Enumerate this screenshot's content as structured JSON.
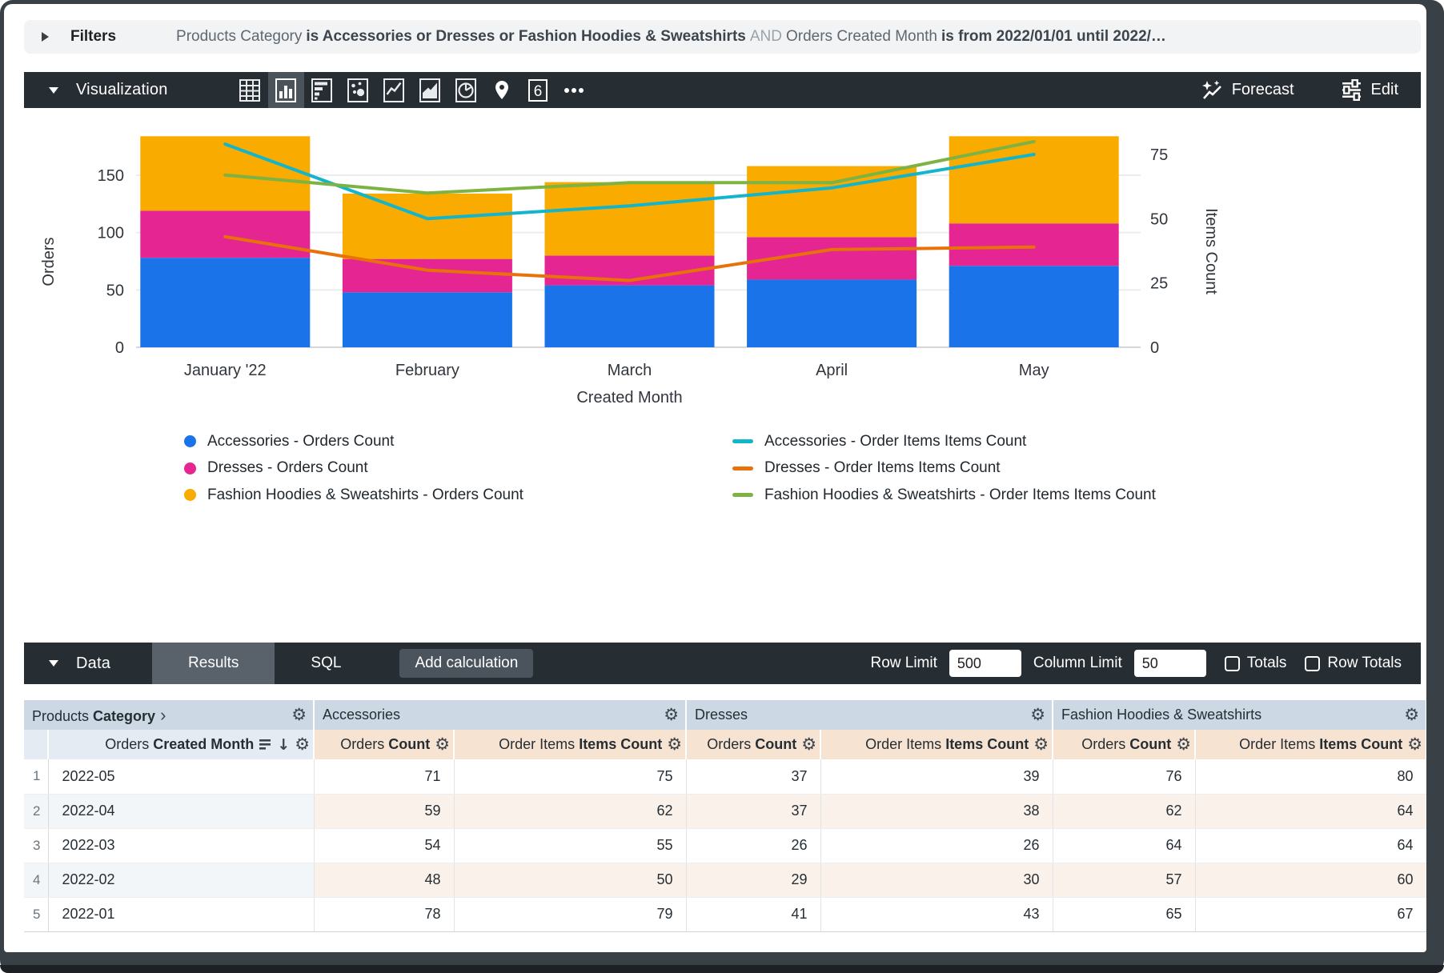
{
  "filters_bar": {
    "label": "Filters",
    "summary_segments": [
      {
        "text": "Products Category",
        "style": "dim"
      },
      {
        "text": "is Accessories or Dresses or Fashion Hoodies & Sweatshirts",
        "style": "strong"
      },
      {
        "text": "AND",
        "style": "faint"
      },
      {
        "text": "Orders Created Month",
        "style": "dim"
      },
      {
        "text": "is from 2022/01/01 until 2022/…",
        "style": "strong"
      }
    ]
  },
  "viz_bar": {
    "label": "Visualization",
    "icons": [
      {
        "name": "table",
        "selected": false
      },
      {
        "name": "column",
        "selected": true
      },
      {
        "name": "bar",
        "selected": false
      },
      {
        "name": "scatter",
        "selected": false
      },
      {
        "name": "line",
        "selected": false
      },
      {
        "name": "area",
        "selected": false
      },
      {
        "name": "pie",
        "selected": false
      },
      {
        "name": "map",
        "selected": false
      },
      {
        "name": "single-value",
        "selected": false,
        "glyph": "6"
      },
      {
        "name": "more",
        "selected": false
      }
    ],
    "forecast_label": "Forecast",
    "edit_label": "Edit"
  },
  "chart_data": {
    "type": "bar",
    "subtype": "stacked-column-with-lines",
    "categories": [
      "January '22",
      "February",
      "March",
      "April",
      "May"
    ],
    "xlabel": "Created Month",
    "left_axis": {
      "title": "Orders",
      "ticks": [
        0,
        50,
        100,
        150
      ]
    },
    "right_axis": {
      "title": "Items Count",
      "ticks": [
        0,
        25,
        50,
        75
      ]
    },
    "bar_series": [
      {
        "name": "Accessories - Orders Count",
        "color": "#1A73E8",
        "values": [
          78,
          48,
          54,
          59,
          71
        ]
      },
      {
        "name": "Dresses - Orders Count",
        "color": "#E52592",
        "values": [
          41,
          29,
          26,
          37,
          37
        ]
      },
      {
        "name": "Fashion Hoodies & Sweatshirts - Orders Count",
        "color": "#F9AB00",
        "values": [
          65,
          57,
          64,
          62,
          76
        ]
      }
    ],
    "line_series": [
      {
        "name": "Accessories - Order Items Items Count",
        "color": "#12B5CB",
        "values": [
          79,
          50,
          55,
          62,
          75
        ]
      },
      {
        "name": "Dresses - Order Items Items Count",
        "color": "#E8710A",
        "values": [
          43,
          30,
          26,
          38,
          39
        ]
      },
      {
        "name": "Fashion Hoodies & Sweatshirts - Order Items Items Count",
        "color": "#7CB342",
        "values": [
          67,
          60,
          64,
          64,
          80
        ]
      }
    ]
  },
  "data_bar": {
    "label": "Data",
    "tabs": [
      {
        "label": "Results",
        "active": true
      },
      {
        "label": "SQL",
        "active": false
      }
    ],
    "add_calculation_label": "Add calculation",
    "row_limit_label": "Row Limit",
    "row_limit_value": "500",
    "column_limit_label": "Column Limit",
    "column_limit_value": "50",
    "totals_label": "Totals",
    "totals_checked": false,
    "row_totals_label": "Row Totals",
    "row_totals_checked": false
  },
  "table": {
    "corner_header": {
      "plain": "Products",
      "bold": "Category"
    },
    "groups": [
      "Accessories",
      "Dresses",
      "Fashion Hoodies & Sweatshirts"
    ],
    "dimension_header": {
      "plain": "Orders",
      "bold": "Created Month"
    },
    "measure_headers": [
      {
        "plain": "Orders",
        "bold": "Count"
      },
      {
        "plain": "Order Items",
        "bold": "Items Count"
      }
    ],
    "rows": [
      {
        "index": 1,
        "month": "2022-05",
        "values": [
          71,
          75,
          37,
          39,
          76,
          80
        ]
      },
      {
        "index": 2,
        "month": "2022-04",
        "values": [
          59,
          62,
          37,
          38,
          62,
          64
        ]
      },
      {
        "index": 3,
        "month": "2022-03",
        "values": [
          54,
          55,
          26,
          26,
          64,
          64
        ]
      },
      {
        "index": 4,
        "month": "2022-02",
        "values": [
          48,
          50,
          29,
          30,
          57,
          60
        ]
      },
      {
        "index": 5,
        "month": "2022-01",
        "values": [
          78,
          79,
          41,
          43,
          65,
          67
        ]
      }
    ]
  }
}
